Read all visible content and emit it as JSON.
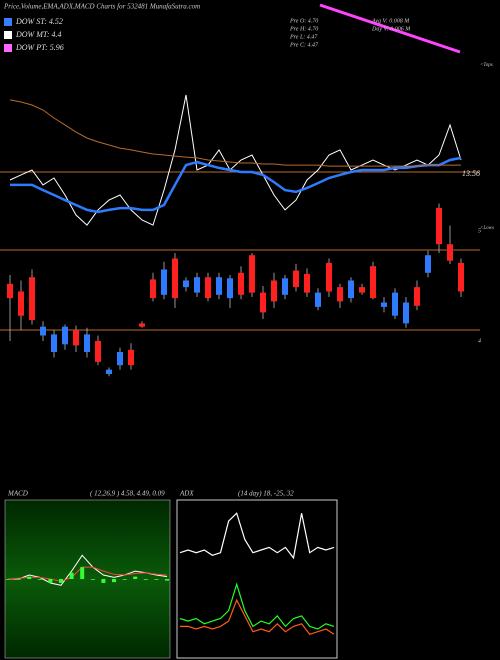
{
  "header": {
    "title": "Price,Volume,EMA,ADX,MACD Charts for 532481 MunafaSutra.com"
  },
  "legend": [
    {
      "label": "DOW ST: 4.52",
      "color": "#3a7bff"
    },
    {
      "label": "DOW MT: 4.4",
      "color": "#ffffff"
    },
    {
      "label": "DOW PT: 5.96",
      "color": "#ff66ff"
    }
  ],
  "info": [
    "Pre  O: 4.70",
    "Pre  H: 4.70",
    "Pre  L: 4.47",
    "Pre  C: 4.47",
    "Avg V: 0.008 M",
    "Day V: 0.006 M"
  ],
  "markers": {
    "tops": "<Tops",
    "lows": "<Lows",
    "level": "13.56"
  },
  "chart_data": [
    {
      "type": "line",
      "ylim": [
        0,
        100
      ],
      "series": [
        {
          "name": "Price",
          "color": "#ffffff",
          "values": [
            29.4,
            32.4,
            35.3,
            26.5,
            30.6,
            20.6,
            8.8,
            2.9,
            11.8,
            17.6,
            20.6,
            11.8,
            5.9,
            2.9,
            23.5,
            47.1,
            79.4,
            35.3,
            38.2,
            47.1,
            35.3,
            41.2,
            44.1,
            32.4,
            20.6,
            11.8,
            17.6,
            29.4,
            35.3,
            44.1,
            47.1,
            35.3,
            38.2,
            41.2,
            38.2,
            35.3,
            38.2,
            41.2,
            38.2,
            44.1,
            61.8,
            41.2
          ]
        },
        {
          "name": "EMA",
          "color": "#2f7bff",
          "values": [
            26.5,
            26.5,
            26.5,
            23.5,
            20.6,
            17.6,
            14.7,
            11.8,
            10.6,
            11.8,
            12.9,
            12.9,
            11.8,
            11.8,
            14.7,
            26.5,
            38.2,
            40.0,
            38.2,
            36.5,
            35.3,
            34.1,
            34.1,
            32.4,
            28.2,
            23.5,
            22.4,
            24.7,
            27.6,
            30.6,
            32.4,
            34.1,
            35.3,
            35.3,
            35.3,
            36.5,
            36.5,
            37.6,
            38.2,
            38.2,
            41.2,
            42.4
          ]
        },
        {
          "name": "EMA slow",
          "color": "#b86a2a",
          "values": [
            76.5,
            75.3,
            73.5,
            70.6,
            65.9,
            61.8,
            57.6,
            54.1,
            51.8,
            50,
            48.2,
            47.1,
            45.9,
            44.7,
            44.1,
            43.5,
            42.9,
            42.4,
            41.2,
            40.6,
            40,
            39.4,
            39.4,
            38.8,
            38.8,
            38.2,
            38.2,
            38.2,
            38.2,
            37.6,
            37.6,
            37.6,
            37.6,
            37.6,
            37.6,
            37.6,
            37.6,
            37.6,
            38.2,
            38.2,
            38.2,
            38.2
          ]
        }
      ]
    },
    {
      "type": "candlestick",
      "ylim": [
        3.4,
        5.5
      ],
      "yticks": [
        5,
        4
      ],
      "up_color": "#2f7bff",
      "down_color": "#ff2020",
      "candles": [
        {
          "o": 4.52,
          "h": 4.6,
          "l": 4.0,
          "c": 4.39
        },
        {
          "o": 4.45,
          "h": 4.55,
          "l": 4.1,
          "c": 4.23
        },
        {
          "o": 4.58,
          "h": 4.65,
          "l": 4.15,
          "c": 4.19
        },
        {
          "o": 4.05,
          "h": 4.18,
          "l": 4.0,
          "c": 4.13
        },
        {
          "o": 3.9,
          "h": 4.1,
          "l": 3.85,
          "c": 4.06
        },
        {
          "o": 3.97,
          "h": 4.15,
          "l": 3.92,
          "c": 4.13
        },
        {
          "o": 4.1,
          "h": 4.14,
          "l": 3.9,
          "c": 3.96
        },
        {
          "o": 3.9,
          "h": 4.12,
          "l": 3.85,
          "c": 4.06
        },
        {
          "o": 4.0,
          "h": 4.05,
          "l": 3.78,
          "c": 3.81
        },
        {
          "o": 3.7,
          "h": 3.76,
          "l": 3.68,
          "c": 3.74
        },
        {
          "o": 3.78,
          "h": 3.94,
          "l": 3.74,
          "c": 3.9
        },
        {
          "o": 3.92,
          "h": 3.98,
          "l": 3.74,
          "c": 3.78
        },
        {
          "o": 4.16,
          "h": 4.18,
          "l": 4.12,
          "c": 4.13
        },
        {
          "o": 4.56,
          "h": 4.62,
          "l": 4.36,
          "c": 4.39
        },
        {
          "o": 4.42,
          "h": 4.72,
          "l": 4.38,
          "c": 4.65
        },
        {
          "o": 4.75,
          "h": 4.8,
          "l": 4.3,
          "c": 4.39
        },
        {
          "o": 4.49,
          "h": 4.58,
          "l": 4.45,
          "c": 4.55
        },
        {
          "o": 4.44,
          "h": 4.62,
          "l": 4.4,
          "c": 4.58
        },
        {
          "o": 4.58,
          "h": 4.62,
          "l": 4.36,
          "c": 4.39
        },
        {
          "o": 4.42,
          "h": 4.62,
          "l": 4.38,
          "c": 4.58
        },
        {
          "o": 4.39,
          "h": 4.6,
          "l": 4.3,
          "c": 4.57
        },
        {
          "o": 4.62,
          "h": 4.68,
          "l": 4.38,
          "c": 4.42
        },
        {
          "o": 4.78,
          "h": 4.8,
          "l": 4.4,
          "c": 4.44
        },
        {
          "o": 4.44,
          "h": 4.5,
          "l": 4.2,
          "c": 4.26
        },
        {
          "o": 4.55,
          "h": 4.62,
          "l": 4.3,
          "c": 4.36
        },
        {
          "o": 4.42,
          "h": 4.6,
          "l": 4.38,
          "c": 4.57
        },
        {
          "o": 4.64,
          "h": 4.7,
          "l": 4.45,
          "c": 4.49
        },
        {
          "o": 4.61,
          "h": 4.66,
          "l": 4.4,
          "c": 4.44
        },
        {
          "o": 4.31,
          "h": 4.48,
          "l": 4.28,
          "c": 4.44
        },
        {
          "o": 4.71,
          "h": 4.75,
          "l": 4.4,
          "c": 4.45
        },
        {
          "o": 4.49,
          "h": 4.52,
          "l": 4.3,
          "c": 4.36
        },
        {
          "o": 4.39,
          "h": 4.58,
          "l": 4.35,
          "c": 4.55
        },
        {
          "o": 4.49,
          "h": 4.52,
          "l": 4.42,
          "c": 4.44
        },
        {
          "o": 4.68,
          "h": 4.72,
          "l": 4.38,
          "c": 4.39
        },
        {
          "o": 4.31,
          "h": 4.4,
          "l": 4.26,
          "c": 4.35
        },
        {
          "o": 4.23,
          "h": 4.48,
          "l": 4.2,
          "c": 4.44
        },
        {
          "o": 4.16,
          "h": 4.4,
          "l": 4.12,
          "c": 4.35
        },
        {
          "o": 4.49,
          "h": 4.55,
          "l": 4.28,
          "c": 4.32
        },
        {
          "o": 4.62,
          "h": 4.82,
          "l": 4.58,
          "c": 4.78
        },
        {
          "o": 5.21,
          "h": 5.25,
          "l": 4.8,
          "c": 4.88
        },
        {
          "o": 4.88,
          "h": 5.05,
          "l": 4.7,
          "c": 4.73
        },
        {
          "o": 4.71,
          "h": 4.75,
          "l": 4.4,
          "c": 4.45
        }
      ]
    },
    {
      "type": "macd",
      "title": "MACD",
      "subtitle": "( 12,26,9 ) 4.58, 4.49, 0.09",
      "ylim": [
        -1,
        1
      ],
      "series": [
        {
          "name": "MACD",
          "color": "#ffffff",
          "values": [
            0,
            0,
            0.05,
            0.02,
            -0.05,
            -0.08,
            0.1,
            0.3,
            0.15,
            0.05,
            0.02,
            0.05,
            0.1,
            0.08,
            0.05,
            0.03
          ]
        },
        {
          "name": "Signal",
          "color": "#ff4040",
          "values": [
            0,
            0.01,
            0.02,
            0.02,
            0,
            -0.03,
            0.02,
            0.15,
            0.15,
            0.1,
            0.06,
            0.05,
            0.07,
            0.08,
            0.06,
            0.05
          ]
        },
        {
          "name": "Histogram",
          "color": "#33ff33",
          "values": [
            0,
            -0.01,
            0.03,
            0,
            -0.05,
            -0.05,
            0.08,
            0.15,
            0,
            -0.05,
            -0.04,
            0,
            0.03,
            0,
            -0.01,
            -0.02
          ]
        }
      ]
    },
    {
      "type": "adx",
      "title": "ADX",
      "subtitle": "(14 day) 18, -25, 32",
      "ylim": [
        0,
        60
      ],
      "series": [
        {
          "name": "+DI",
          "color": "#ffffff",
          "values": [
            40,
            41,
            40,
            41,
            39,
            40,
            52,
            55,
            45,
            40,
            41,
            42,
            40,
            42,
            38,
            55,
            40,
            42,
            41,
            42
          ]
        },
        {
          "name": "ADX",
          "color": "#22ff22",
          "values": [
            15,
            14,
            15,
            13,
            14,
            15,
            18,
            28,
            18,
            12,
            14,
            13,
            16,
            12,
            15,
            16,
            12,
            11,
            13,
            12
          ]
        },
        {
          "name": "-DI",
          "color": "#ff5a1a",
          "values": [
            12,
            12,
            11,
            12,
            11,
            12,
            14,
            22,
            16,
            10,
            11,
            10,
            13,
            10,
            12,
            13,
            9,
            10,
            11,
            9
          ]
        }
      ]
    }
  ]
}
